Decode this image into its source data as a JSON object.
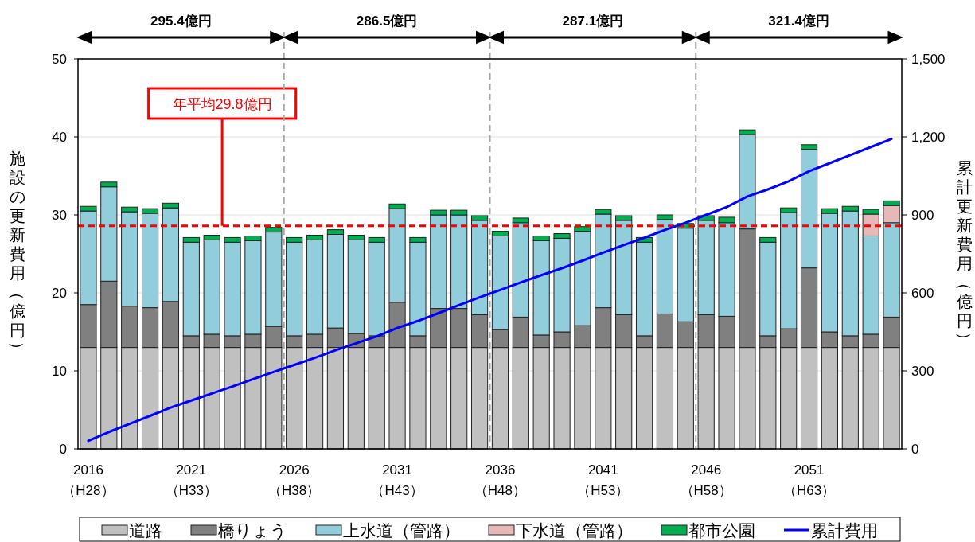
{
  "chart_data": {
    "type": "bar",
    "stacked": true,
    "xlabel": null,
    "ylabel": "施設の更新費用（億円）",
    "y2label": "累計更新費用（億円）",
    "x": [
      2016,
      2017,
      2018,
      2019,
      2020,
      2021,
      2022,
      2023,
      2024,
      2025,
      2026,
      2027,
      2028,
      2029,
      2030,
      2031,
      2032,
      2033,
      2034,
      2035,
      2036,
      2037,
      2038,
      2039,
      2040,
      2041,
      2042,
      2043,
      2044,
      2045,
      2046,
      2047,
      2048,
      2049,
      2050,
      2051,
      2052,
      2053,
      2054,
      2055
    ],
    "xlim": [
      2015.5,
      2055.5
    ],
    "xticks": [
      2016,
      2021,
      2026,
      2031,
      2036,
      2041,
      2046,
      2051
    ],
    "annotations": [
      "295.4億円",
      "286.5億円",
      "287.1億円",
      "321.4億円",
      "（H28）",
      "（H33）",
      "（H38）",
      "（H43）",
      "（H48）",
      "（H53）",
      "（H58）",
      "（H63）"
    ],
    "ylim": [
      0,
      50
    ],
    "yticks": [
      0,
      10,
      20,
      30,
      40,
      50
    ],
    "y2lim": [
      0,
      1500
    ],
    "y2ticks": [
      0,
      {
        "value": 300,
        "label": "300"
      },
      {
        "value": 600,
        "label": "600"
      },
      {
        "value": 900,
        "label": "900"
      },
      {
        "value": 1200,
        "label": "1,200"
      },
      {
        "value": 1500,
        "label": "1,500"
      }
    ],
    "grid": "y",
    "legend": "bottom",
    "series": [
      {
        "name": "道路",
        "color": "#c0c0c0",
        "values": [
          13,
          13,
          13,
          13,
          13,
          13,
          13,
          13,
          13,
          13,
          13,
          13,
          13,
          13,
          13,
          13,
          13,
          13,
          13,
          13,
          13,
          13,
          13,
          13,
          13,
          13,
          13,
          13,
          13,
          13,
          13,
          13,
          13,
          13,
          13,
          13,
          13,
          13,
          13,
          13
        ]
      },
      {
        "name": "橋りょう",
        "color": "#808080",
        "values": [
          5.5,
          8.5,
          5.3,
          5.1,
          5.9,
          1.5,
          1.7,
          1.5,
          1.7,
          2.7,
          1.5,
          1.7,
          2.5,
          1.8,
          1.5,
          5.8,
          1.5,
          5.0,
          5.0,
          4.2,
          2.3,
          3.9,
          1.6,
          2.0,
          2.8,
          5.1,
          4.2,
          1.5,
          4.3,
          3.3,
          4.2,
          4.0,
          15.2,
          1.5,
          2.4,
          10.2,
          2.0,
          1.5,
          1.7,
          3.9
        ]
      },
      {
        "name": "上水道（管路）",
        "color": "#92cddc",
        "values": [
          12.0,
          12.1,
          12.1,
          12.1,
          12.0,
          12.0,
          12.1,
          12.0,
          12.0,
          12.1,
          12.0,
          12.1,
          12.0,
          12.0,
          12.0,
          12.0,
          12.0,
          12.0,
          12.0,
          12.1,
          12.0,
          12.1,
          12.1,
          12.0,
          12.1,
          12.0,
          12.1,
          12.0,
          12.1,
          12.0,
          12.1,
          12.0,
          12.1,
          12.0,
          14.9,
          15.2,
          15.2,
          16.0,
          12.6,
          12.1
        ]
      },
      {
        "name": "下水道（管路）",
        "color": "#e6b9b8",
        "values": [
          0,
          0,
          0,
          0,
          0,
          0,
          0,
          0,
          0,
          0,
          0,
          0,
          0,
          0,
          0,
          0,
          0,
          0,
          0,
          0,
          0,
          0,
          0,
          0,
          0,
          0,
          0,
          0,
          0,
          0,
          0,
          0,
          0,
          0,
          0,
          0,
          0,
          0,
          2.8,
          2.2
        ]
      },
      {
        "name": "都市公園",
        "color": "#00b050",
        "values": [
          0.6,
          0.6,
          0.6,
          0.6,
          0.6,
          0.6,
          0.6,
          0.6,
          0.6,
          0.6,
          0.6,
          0.6,
          0.6,
          0.6,
          0.6,
          0.6,
          0.6,
          0.6,
          0.6,
          0.6,
          0.6,
          0.6,
          0.6,
          0.6,
          0.6,
          0.6,
          0.6,
          0.6,
          0.6,
          0.6,
          0.6,
          0.7,
          0.6,
          0.6,
          0.6,
          0.6,
          0.6,
          0.6,
          0.6,
          0.6
        ]
      },
      {
        "name": "累計費用",
        "type": "line",
        "axis": "y2",
        "color": "#0000ff",
        "values": [
          31,
          65,
          96,
          127,
          159,
          186,
          213,
          240,
          268,
          296,
          323,
          350,
          379,
          406,
          433,
          465,
          492,
          522,
          553,
          583,
          611,
          640,
          668,
          695,
          724,
          755,
          784,
          812,
          842,
          870,
          900,
          930,
          971,
          998,
          1029,
          1068,
          1099,
          1130,
          1161,
          1192
        ]
      }
    ],
    "ref_lines": [
      {
        "axis": "y",
        "value": 28.6,
        "label": "年平均29.8億円",
        "color": "#ff0000",
        "line_style": "dashed"
      },
      {
        "axis": "x",
        "value": 2025.5,
        "label": null,
        "color": "#a6a6a6",
        "line_style": "dashed"
      },
      {
        "axis": "x",
        "value": 2035.5,
        "label": null,
        "color": "#a6a6a6",
        "line_style": "dashed"
      },
      {
        "axis": "x",
        "value": 2045.5,
        "label": null,
        "color": "#a6a6a6",
        "line_style": "dashed"
      }
    ]
  }
}
